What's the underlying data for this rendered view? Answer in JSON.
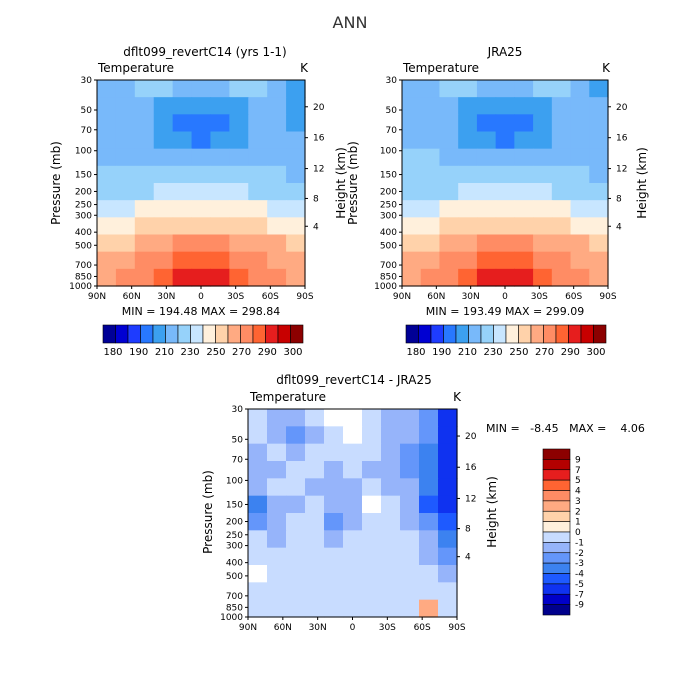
{
  "page_title": "ANN",
  "colors": {
    "temperature_scale": [
      "#000096",
      "#0000d2",
      "#1e3cff",
      "#2878ff",
      "#3ca0f0",
      "#78b9fa",
      "#96d2fa",
      "#c8e6ff",
      "#fff0dc",
      "#ffd2aa",
      "#ffaa82",
      "#ff8c64",
      "#ff6432",
      "#e61e1e",
      "#c80000",
      "#8c0000"
    ],
    "diff_scale": [
      "#00008c",
      "#0000c8",
      "#0f32f0",
      "#1e5aff",
      "#3c82f0",
      "#6496fa",
      "#96b4fa",
      "#c8dcff",
      "#ffffff",
      "#fff0dc",
      "#ffd2aa",
      "#ffaa82",
      "#ff8c64",
      "#ff6432",
      "#e61e1e",
      "#b40000",
      "#8c0000"
    ]
  },
  "chart_data": [
    {
      "type": "heatmap",
      "title": "dflt099_revertC14 (yrs 1-1)",
      "subtitle": "Temperature",
      "units": "K",
      "ylabel": "Pressure (mb)",
      "ylabel_right": "Height (km)",
      "x_ticks": [
        "90N",
        "60N",
        "30N",
        "0",
        "30S",
        "60S",
        "90S"
      ],
      "y_ticks": [
        "30",
        "50",
        "70",
        "100",
        "150",
        "200",
        "250",
        "300",
        "400",
        "500",
        "700",
        "850",
        "1000"
      ],
      "y_right_ticks": [
        "20",
        "16",
        "12",
        "8",
        "4"
      ],
      "stats": "MIN = 194.48   MAX = 298.84",
      "colorbar_labels": [
        "180",
        "190",
        "210",
        "230",
        "250",
        "270",
        "290",
        "300"
      ],
      "values": [
        [
          218,
          218,
          220,
          221,
          219,
          218,
          219,
          221,
          220,
          218,
          207
        ],
        [
          216,
          216,
          214,
          206,
          202,
          202,
          203,
          207,
          214,
          216,
          206
        ],
        [
          214,
          214,
          210,
          202,
          197,
          196,
          197,
          202,
          210,
          214,
          208
        ],
        [
          216,
          216,
          212,
          206,
          200,
          198,
          200,
          206,
          212,
          214,
          210
        ],
        [
          219,
          219,
          216,
          214,
          212,
          212,
          212,
          214,
          216,
          217,
          214
        ],
        [
          222,
          222,
          221,
          220,
          220,
          220,
          220,
          220,
          221,
          221,
          219
        ],
        [
          227,
          228,
          229,
          230,
          230,
          230,
          230,
          230,
          229,
          228,
          226
        ],
        [
          234,
          236,
          240,
          243,
          244,
          244,
          244,
          243,
          240,
          237,
          233
        ],
        [
          244,
          248,
          253,
          256,
          258,
          258,
          258,
          256,
          253,
          249,
          243
        ],
        [
          253,
          259,
          265,
          268,
          270,
          270,
          270,
          268,
          265,
          260,
          252
        ],
        [
          261,
          268,
          274,
          278,
          281,
          282,
          281,
          278,
          274,
          269,
          261
        ],
        [
          263,
          270,
          279,
          285,
          290,
          292,
          290,
          285,
          279,
          271,
          262
        ]
      ]
    },
    {
      "type": "heatmap",
      "title": "JRA25",
      "subtitle": "Temperature",
      "units": "K",
      "ylabel": "Pressure (mb)",
      "ylabel_right": "Height (km)",
      "x_ticks": [
        "90N",
        "60N",
        "30N",
        "0",
        "30S",
        "60S",
        "90S"
      ],
      "y_ticks": [
        "30",
        "50",
        "70",
        "100",
        "150",
        "200",
        "250",
        "300",
        "400",
        "500",
        "700",
        "850",
        "1000"
      ],
      "y_right_ticks": [
        "20",
        "16",
        "12",
        "8",
        "4"
      ],
      "stats": "MIN = 193.49   MAX = 299.09",
      "colorbar_labels": [
        "180",
        "190",
        "210",
        "230",
        "250",
        "270",
        "290",
        "300"
      ],
      "values": [
        [
          218,
          218,
          220,
          221,
          219,
          218,
          219,
          221,
          220,
          218,
          208
        ],
        [
          216,
          216,
          214,
          206,
          202,
          202,
          203,
          207,
          214,
          216,
          210
        ],
        [
          214,
          214,
          210,
          202,
          197,
          196,
          197,
          202,
          210,
          214,
          212
        ],
        [
          218,
          217,
          212,
          206,
          200,
          198,
          200,
          206,
          212,
          215,
          214
        ],
        [
          224,
          221,
          216,
          214,
          212,
          212,
          212,
          214,
          216,
          218,
          217
        ],
        [
          222,
          222,
          221,
          220,
          220,
          220,
          220,
          220,
          221,
          221,
          219
        ],
        [
          227,
          228,
          229,
          230,
          230,
          230,
          230,
          230,
          229,
          228,
          226
        ],
        [
          234,
          236,
          240,
          243,
          244,
          244,
          244,
          243,
          240,
          237,
          233
        ],
        [
          244,
          248,
          253,
          256,
          258,
          258,
          258,
          256,
          253,
          249,
          243
        ],
        [
          253,
          259,
          265,
          268,
          270,
          270,
          270,
          268,
          265,
          260,
          252
        ],
        [
          261,
          268,
          274,
          278,
          281,
          282,
          281,
          278,
          274,
          269,
          261
        ],
        [
          263,
          270,
          279,
          285,
          290,
          292,
          290,
          285,
          279,
          271,
          262
        ]
      ]
    },
    {
      "type": "heatmap",
      "title": "dflt099_revertC14 - JRA25",
      "subtitle": "Temperature",
      "units": "K",
      "ylabel": "Pressure (mb)",
      "ylabel_right": "Height (km)",
      "x_ticks": [
        "90N",
        "60N",
        "30N",
        "0",
        "30S",
        "60S",
        "90S"
      ],
      "y_ticks": [
        "30",
        "50",
        "70",
        "100",
        "150",
        "200",
        "250",
        "300",
        "400",
        "500",
        "700",
        "850",
        "1000"
      ],
      "y_right_ticks": [
        "20",
        "16",
        "12",
        "8",
        "4"
      ],
      "stats": "MIN =   -8.45   MAX =    4.06",
      "colorbar_labels": [
        "9",
        "7",
        "5",
        "4",
        "3",
        "2",
        "1",
        "0",
        "-1",
        "-2",
        "-3",
        "-4",
        "-5",
        "-7",
        "-9"
      ],
      "values": [
        [
          -0.5,
          -1.5,
          -1.5,
          -0.5,
          0.5,
          0.5,
          -0.5,
          -1.5,
          -1.5,
          -2.5,
          -5.5
        ],
        [
          -0.5,
          -1.5,
          -2.5,
          -1.5,
          -0.5,
          0.5,
          -0.5,
          -1.5,
          -1.5,
          -2.5,
          -6.5
        ],
        [
          -1.5,
          -0.5,
          -1.5,
          -0.5,
          -0.5,
          -0.5,
          -0.5,
          -1.5,
          -2.5,
          -3.5,
          -6.5
        ],
        [
          -1.5,
          -1.5,
          -0.5,
          -0.5,
          -1.5,
          -0.5,
          -1.5,
          -1.5,
          -2.5,
          -3.5,
          -6.5
        ],
        [
          -1.5,
          -0.5,
          -0.5,
          -1.5,
          -1.5,
          -1.5,
          -0.5,
          -1.5,
          -1.5,
          -3.5,
          -6.5
        ],
        [
          -3.5,
          -1.5,
          -1.5,
          -0.5,
          -1.5,
          -1.5,
          0.5,
          -0.5,
          -1.5,
          -4.5,
          -6.5
        ],
        [
          -2.5,
          -1.5,
          -0.5,
          -0.5,
          -2.5,
          -1.5,
          -0.5,
          -0.5,
          -1.5,
          -2.5,
          -4.5
        ],
        [
          -0.5,
          -1.5,
          -0.5,
          -0.5,
          -1.5,
          -0.5,
          -0.5,
          -0.5,
          -0.5,
          -1.5,
          -3.5
        ],
        [
          -0.5,
          -0.5,
          -0.5,
          -0.5,
          -0.5,
          -0.5,
          -0.5,
          -0.5,
          -0.5,
          -1.5,
          -2.5
        ],
        [
          0.5,
          -0.5,
          -0.5,
          -0.5,
          -0.5,
          -0.5,
          -0.5,
          -0.5,
          -0.5,
          -0.5,
          -1.5
        ],
        [
          -0.5,
          -0.5,
          -0.5,
          -0.5,
          -0.5,
          -0.5,
          -0.5,
          -0.5,
          -0.5,
          -0.5,
          -0.5
        ],
        [
          -0.5,
          -0.5,
          -0.5,
          -0.5,
          -0.5,
          -0.5,
          -0.5,
          -0.5,
          -0.5,
          3.5,
          -0.5
        ]
      ]
    }
  ]
}
